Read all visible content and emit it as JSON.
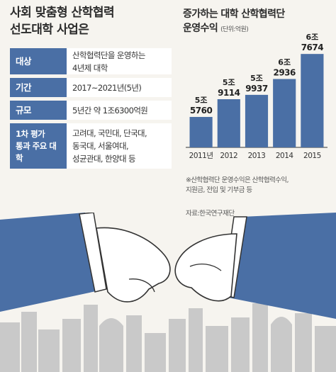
{
  "left": {
    "title_line1": "사회 맞춤형 산학협력",
    "title_line2": "선도대학 사업은",
    "rows": [
      {
        "label": "대상",
        "value": "산학협력단을 운영하는\n4년제 대학"
      },
      {
        "label": "기간",
        "value": "2017~2021년(5년)"
      },
      {
        "label": "규모",
        "value": "5년간 약 1조6300억원"
      },
      {
        "label": "1차 평가\n통과 주요 대학",
        "value": "고려대, 국민대, 단국대,\n동국대, 서울여대,\n성균관대, 한양대 등"
      }
    ]
  },
  "right": {
    "title_line1": "증가하는 대학 산학협력단",
    "title_line2": "운영수익",
    "unit": "(단위:억원)",
    "note": "※산학협력단 운영수익은 산학협력수익,\n지원금, 전입 및 기부금 등",
    "source": "자료:한국연구재단"
  },
  "chart_data": {
    "type": "bar",
    "title": "증가하는 대학 산학협력단 운영수익",
    "unit": "억원",
    "categories": [
      "2011년",
      "2012",
      "2013",
      "2014",
      "2015"
    ],
    "values": [
      55760,
      59114,
      59937,
      62936,
      67674
    ],
    "labels_top": [
      "5조",
      "5조",
      "5조",
      "6조",
      "6조"
    ],
    "labels_bottom": [
      "5760",
      "9114",
      "9937",
      "2936",
      "7674"
    ],
    "bar_color": "#4a6fa5",
    "ylim": [
      50000,
      68500
    ]
  },
  "colors": {
    "accent": "#4a6fa5",
    "background": "#f6f4ef"
  }
}
